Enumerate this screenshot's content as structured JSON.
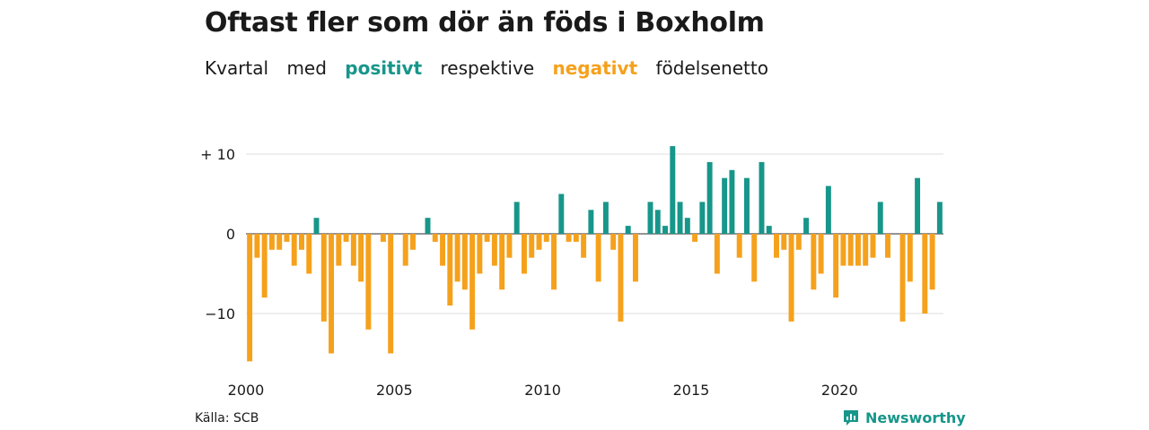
{
  "title": "Oftast fler som dör än föds i Boxholm",
  "subtitle": {
    "part1": "Kvartal",
    "part2": "med",
    "positive": "positivt",
    "part3": "respektive",
    "negative": "negativt",
    "part4": "födelsenetto"
  },
  "source": "Källa: SCB",
  "brand": "Newsworthy",
  "colors": {
    "positive": "#17968a",
    "negative": "#f5a11c",
    "grid": "#dddddd",
    "text": "#1a1a1a"
  },
  "chart_data": {
    "type": "bar",
    "x_start": "2000 Q1",
    "x_end": "2023 Q3",
    "x_ticks": [
      "2000",
      "2005",
      "2010",
      "2015",
      "2020"
    ],
    "y_ticks": [
      {
        "value": 10,
        "label": "+ 10"
      },
      {
        "value": 0,
        "label": "0"
      },
      {
        "value": -10,
        "label": "−10"
      }
    ],
    "ylim": [
      -17,
      12
    ],
    "grid": true,
    "values": [
      -16,
      -3,
      -8,
      -2,
      -2,
      -1,
      -4,
      -2,
      -5,
      2,
      -11,
      -15,
      -4,
      -1,
      -4,
      -6,
      -12,
      0,
      -1,
      -15,
      0,
      -4,
      -2,
      0,
      2,
      -1,
      -4,
      -9,
      -6,
      -7,
      -12,
      -5,
      -1,
      -4,
      -7,
      -3,
      4,
      -5,
      -3,
      -2,
      -1,
      -7,
      5,
      -1,
      -1,
      -3,
      3,
      -6,
      4,
      -2,
      -11,
      1,
      -6,
      0,
      4,
      3,
      1,
      11,
      4,
      2,
      -1,
      4,
      9,
      -5,
      7,
      8,
      -3,
      7,
      -6,
      9,
      1,
      -3,
      -2,
      -11,
      -2,
      2,
      -7,
      -5,
      6,
      -8,
      -4,
      -4,
      -4,
      -4,
      -3,
      4,
      -3,
      0,
      -11,
      -6,
      7,
      -10,
      -7,
      4
    ]
  }
}
